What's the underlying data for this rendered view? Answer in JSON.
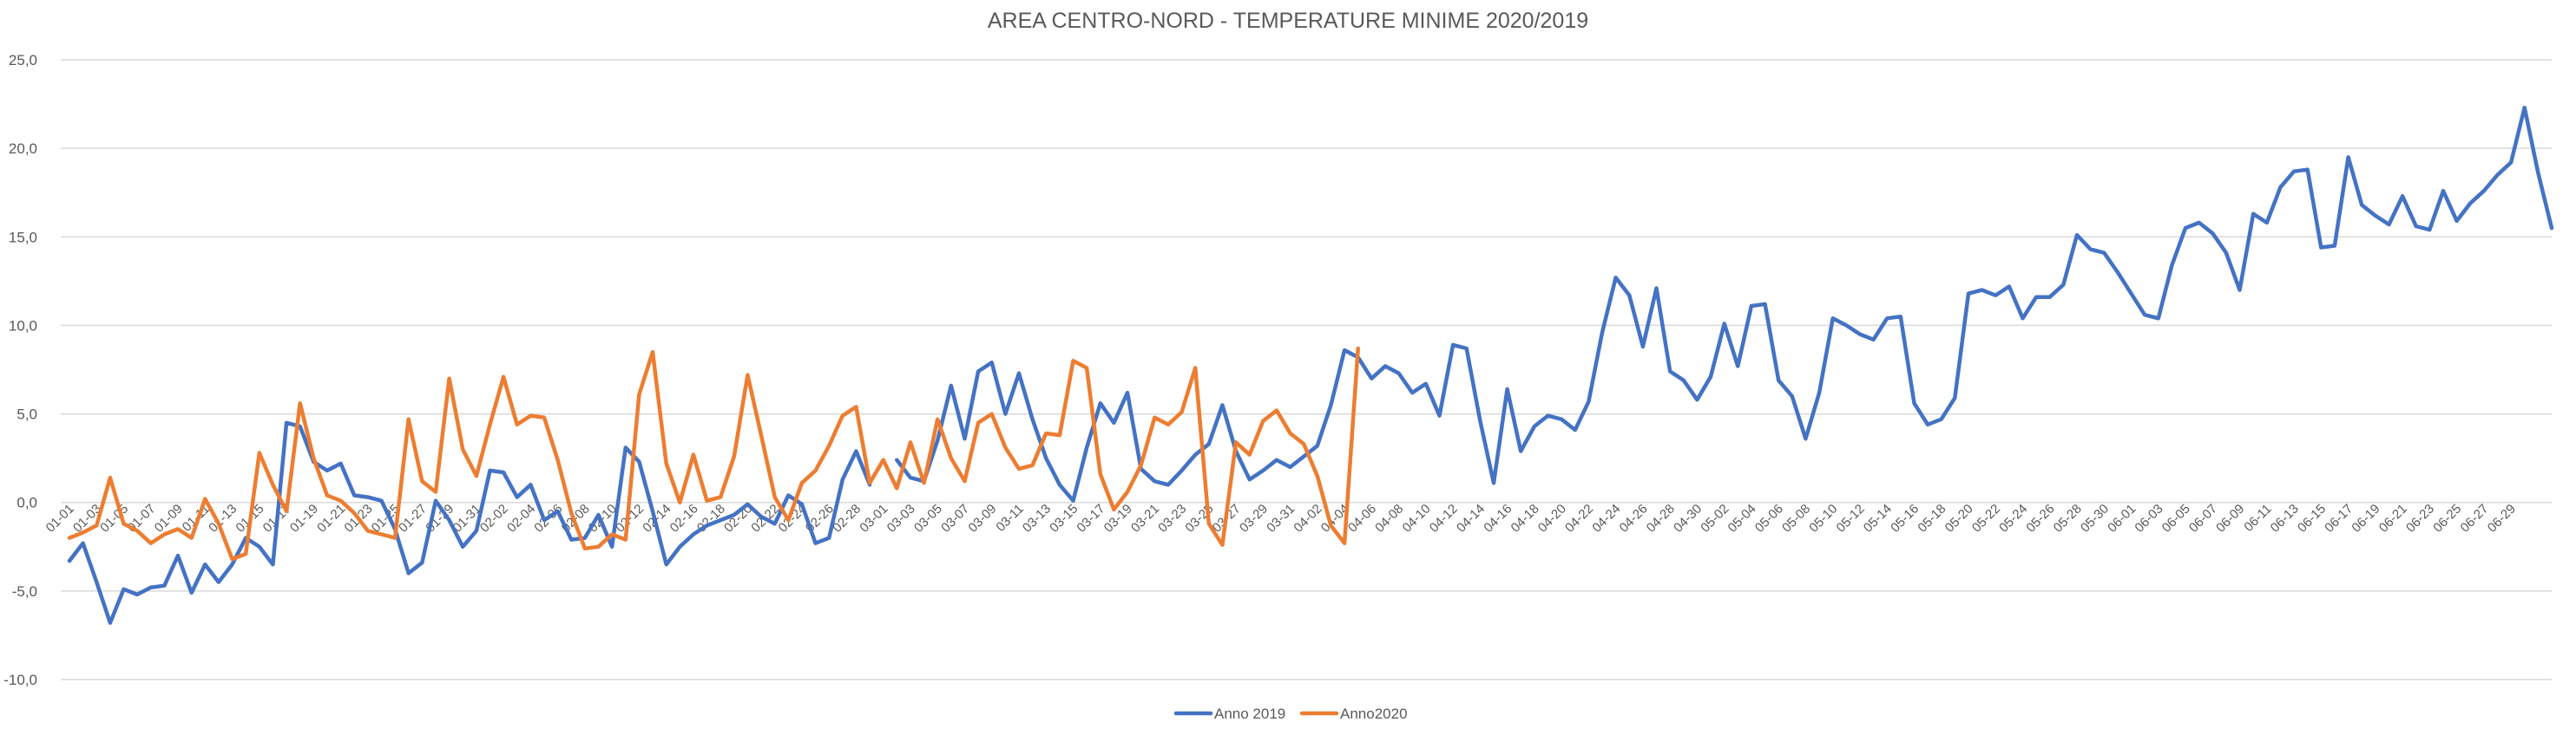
{
  "chart_data": {
    "type": "line",
    "title": "AREA CENTRO-NORD - TEMPERATURE MINIME 2020/2019",
    "xlabel": "",
    "ylabel": "",
    "ylim": [
      -10,
      25
    ],
    "yticks": [
      "-10,0",
      "-5,0",
      "0,0",
      "5,0",
      "10,0",
      "15,0",
      "20,0",
      "25,0"
    ],
    "ytick_values": [
      -10,
      -5,
      0,
      5,
      10,
      15,
      20,
      25
    ],
    "grid": true,
    "legend_position": "bottom",
    "x_tick_labels": [
      "01-01",
      "01-03",
      "01-05",
      "01-07",
      "01-09",
      "01-11",
      "01-13",
      "01-15",
      "01-17",
      "01-19",
      "01-21",
      "01-23",
      "01-25",
      "01-27",
      "01-29",
      "01-31",
      "02-02",
      "02-04",
      "02-06",
      "02-08",
      "02-10",
      "02-12",
      "02-14",
      "02-16",
      "02-18",
      "02-20",
      "02-22",
      "02-24",
      "02-26",
      "02-28",
      "03-01",
      "03-03",
      "03-05",
      "03-07",
      "03-09",
      "03-11",
      "03-13",
      "03-15",
      "03-17",
      "03-19",
      "03-21",
      "03-23",
      "03-25",
      "03-27",
      "03-29",
      "03-31",
      "04-02",
      "04-04",
      "04-06",
      "04-08",
      "04-10",
      "04-12",
      "04-14",
      "04-16",
      "04-18",
      "04-20",
      "04-22",
      "04-24",
      "04-26",
      "04-28",
      "04-30",
      "05-02",
      "05-04",
      "05-06",
      "05-08",
      "05-10",
      "05-12",
      "05-14",
      "05-16",
      "05-18",
      "05-20",
      "05-22",
      "05-24",
      "05-26",
      "05-28",
      "05-30",
      "06-01",
      "06-03",
      "06-05",
      "06-07",
      "06-09",
      "06-11",
      "06-13",
      "06-15",
      "06-17",
      "06-19",
      "06-21",
      "06-23",
      "06-25",
      "06-27",
      "06-29"
    ],
    "series": [
      {
        "name": "Anno 2019",
        "color": "#4472C4",
        "values": [
          -3.3,
          -2.3,
          -4.5,
          -6.8,
          -4.9,
          -5.2,
          -4.8,
          -4.7,
          -3.0,
          -5.1,
          -3.5,
          -4.5,
          -3.5,
          -2.0,
          -2.5,
          -3.5,
          4.5,
          4.3,
          2.3,
          1.8,
          2.2,
          0.4,
          0.3,
          0.1,
          -1.5,
          -4.0,
          -3.4,
          0.1,
          -1.0,
          -2.5,
          -1.6,
          1.8,
          1.7,
          0.3,
          1.0,
          -1.0,
          -0.5,
          -2.1,
          -2.0,
          -0.7,
          -2.5,
          3.1,
          2.3,
          -0.5,
          -3.5,
          -2.5,
          -1.8,
          -1.3,
          -1.0,
          -0.7,
          -0.1,
          -0.8,
          -1.2,
          0.4,
          -0.1,
          -2.3,
          -2.0,
          1.3,
          2.9,
          1.0,
          null,
          2.4,
          1.4,
          1.2,
          3.5,
          6.6,
          3.6,
          7.4,
          7.9,
          5.0,
          7.3,
          4.7,
          2.5,
          1.0,
          0.1,
          3.1,
          5.6,
          4.5,
          6.2,
          1.9,
          1.2,
          1.0,
          1.8,
          2.7,
          3.3,
          5.5,
          2.9,
          1.3,
          1.8,
          2.4,
          2.0,
          2.6,
          3.2,
          5.5,
          8.6,
          8.2,
          7.0,
          7.7,
          7.3,
          6.2,
          6.7,
          4.9,
          8.9,
          8.7,
          4.6,
          1.1,
          6.4,
          2.9,
          4.3,
          4.9,
          4.7,
          4.1,
          5.7,
          9.6,
          12.7,
          11.7,
          8.8,
          12.1,
          7.4,
          6.9,
          5.8,
          7.1,
          10.1,
          7.7,
          11.1,
          11.2,
          6.9,
          6.0,
          3.6,
          6.2,
          10.4,
          10.0,
          9.5,
          9.2,
          10.4,
          10.5,
          5.6,
          4.4,
          4.7,
          5.9,
          11.8,
          12.0,
          11.7,
          12.2,
          10.4,
          11.6,
          11.6,
          12.3,
          15.1,
          14.3,
          14.1,
          13.0,
          11.8,
          10.6,
          10.4,
          13.4,
          15.5,
          15.8,
          15.2,
          14.1,
          12.0,
          16.3,
          15.8,
          17.8,
          18.7,
          18.8,
          14.4,
          14.5,
          19.5,
          16.8,
          16.2,
          15.7,
          17.3,
          15.6,
          15.4,
          17.6,
          15.9,
          16.9,
          17.6,
          18.5,
          19.2,
          22.3,
          18.6,
          15.5
        ]
      },
      {
        "name": "Anno2020",
        "color": "#ED7D31",
        "values": [
          -2.0,
          -1.7,
          -1.3,
          1.4,
          -1.2,
          -1.6,
          -2.3,
          -1.8,
          -1.5,
          -2.0,
          0.2,
          -1.2,
          -3.2,
          -2.9,
          2.8,
          1.0,
          -0.5,
          5.6,
          2.5,
          0.4,
          0.1,
          -0.6,
          -1.6,
          -1.8,
          -2.0,
          4.7,
          1.2,
          0.6,
          7.0,
          3.0,
          1.5,
          4.4,
          7.1,
          4.4,
          4.9,
          4.8,
          2.4,
          -0.6,
          -2.6,
          -2.5,
          -1.8,
          -2.1,
          6.1,
          8.5,
          2.2,
          0.0,
          2.7,
          0.1,
          0.3,
          2.6,
          7.2,
          3.8,
          0.3,
          -1.0,
          1.1,
          1.8,
          3.2,
          4.9,
          5.4,
          1.1,
          2.4,
          0.8,
          3.4,
          1.1,
          4.7,
          2.5,
          1.2,
          4.5,
          5.0,
          3.1,
          1.9,
          2.1,
          3.9,
          3.8,
          8.0,
          7.6,
          1.6,
          -0.4,
          0.6,
          2.1,
          4.8,
          4.4,
          5.1,
          7.6,
          -1.2,
          -2.4,
          3.4,
          2.7,
          4.6,
          5.2,
          3.9,
          3.3,
          1.5,
          -1.3,
          -2.3,
          8.7
        ]
      }
    ]
  }
}
